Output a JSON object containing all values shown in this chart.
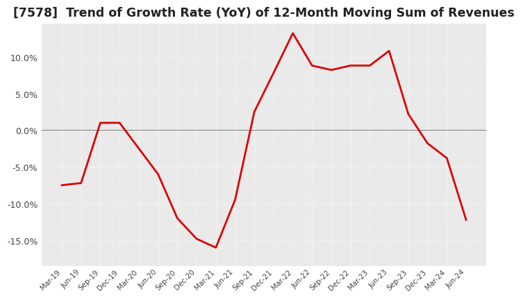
{
  "title": "[7578]  Trend of Growth Rate (YoY) of 12-Month Moving Sum of Revenues",
  "title_fontsize": 12.5,
  "line_color": "#dd0000",
  "line_width": 2.0,
  "background_color": "#ffffff",
  "plot_bg_color": "#eaeaea",
  "grid_color": "#ffffff",
  "zero_line_color": "#888888",
  "ylim": [
    -0.185,
    0.145
  ],
  "yticks": [
    -0.15,
    -0.1,
    -0.05,
    0.0,
    0.05,
    0.1
  ],
  "dates": [
    "Mar-19",
    "Jun-19",
    "Sep-19",
    "Dec-19",
    "Mar-20",
    "Jun-20",
    "Sep-20",
    "Dec-20",
    "Mar-21",
    "Jun-21",
    "Sep-21",
    "Dec-21",
    "Mar-22",
    "Jun-22",
    "Sep-22",
    "Dec-22",
    "Mar-23",
    "Jun-23",
    "Sep-23",
    "Dec-23",
    "Mar-24",
    "Jun-24"
  ],
  "values": [
    -0.075,
    -0.072,
    0.01,
    0.01,
    -0.025,
    -0.06,
    -0.12,
    -0.148,
    -0.16,
    -0.095,
    0.025,
    0.078,
    0.132,
    0.088,
    0.082,
    0.088,
    0.088,
    0.108,
    0.022,
    -0.018,
    -0.038,
    -0.122
  ]
}
